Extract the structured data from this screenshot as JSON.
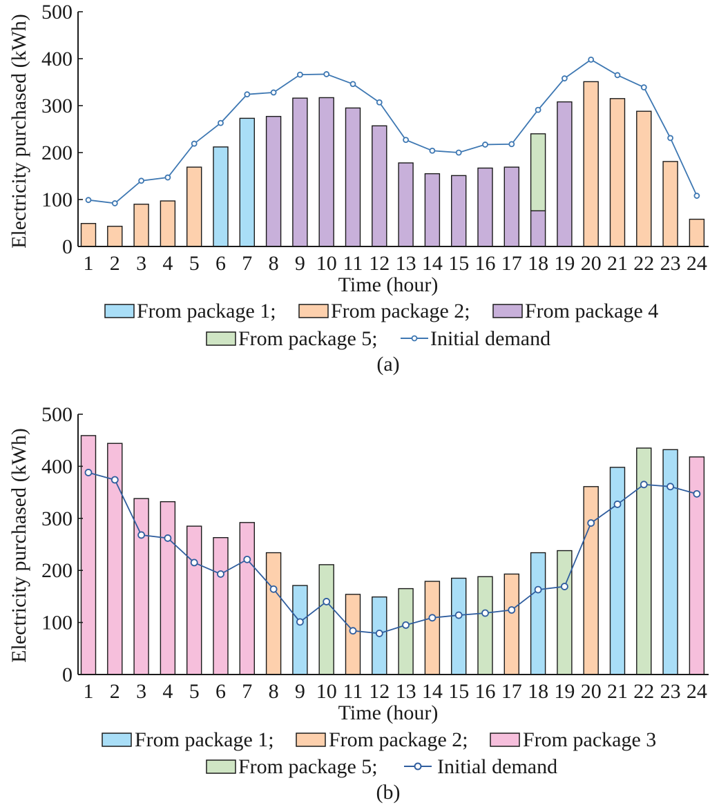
{
  "colors": {
    "package1": "#a9def7",
    "package2": "#fdd0ad",
    "package3": "#f6bfdc",
    "package4": "#c8b0da",
    "package5": "#cfe5c4",
    "line_a": "#3d77b2",
    "line_b": "#2f5d9e",
    "axis": "#1a1a1a"
  },
  "chart_data": [
    {
      "type": "bar",
      "caption": "(a)",
      "xlabel": "Time (hour)",
      "ylabel": "Electricity purchased (kWh)",
      "ylim": [
        0,
        500
      ],
      "yticks": [
        0,
        100,
        200,
        300,
        400,
        500
      ],
      "categories": [
        "1",
        "2",
        "3",
        "4",
        "5",
        "6",
        "7",
        "8",
        "9",
        "10",
        "11",
        "12",
        "13",
        "14",
        "15",
        "16",
        "17",
        "18",
        "19",
        "20",
        "21",
        "22",
        "23",
        "24"
      ],
      "series": [
        {
          "name": "From package 1",
          "color_key": "package1",
          "values": [
            0,
            0,
            0,
            0,
            0,
            212,
            273,
            0,
            0,
            0,
            0,
            0,
            0,
            0,
            0,
            0,
            0,
            0,
            0,
            0,
            0,
            0,
            0,
            0
          ]
        },
        {
          "name": "From package 2",
          "color_key": "package2",
          "values": [
            49,
            43,
            90,
            97,
            169,
            0,
            0,
            0,
            0,
            0,
            0,
            0,
            0,
            0,
            0,
            0,
            0,
            0,
            0,
            351,
            315,
            288,
            181,
            58
          ]
        },
        {
          "name": "From package 4",
          "color_key": "package4",
          "values": [
            0,
            0,
            0,
            0,
            0,
            0,
            0,
            277,
            316,
            317,
            295,
            257,
            178,
            155,
            151,
            167,
            169,
            76,
            308,
            0,
            0,
            0,
            0,
            0
          ]
        },
        {
          "name": "From package 5",
          "color_key": "package5",
          "values": [
            0,
            0,
            0,
            0,
            0,
            0,
            0,
            0,
            0,
            0,
            0,
            0,
            0,
            0,
            0,
            0,
            0,
            164,
            0,
            0,
            0,
            0,
            0,
            0
          ]
        }
      ],
      "line": {
        "name": "Initial demand",
        "color_key": "line_a",
        "values": [
          99,
          92,
          140,
          147,
          219,
          263,
          324,
          328,
          366,
          367,
          346,
          307,
          227,
          204,
          200,
          217,
          218,
          291,
          358,
          398,
          365,
          339,
          231,
          108
        ]
      },
      "legend": {
        "row1": [
          "From package 1;",
          "From package 2;",
          "From package 4"
        ],
        "row2": [
          "From package 5;",
          "Initial demand"
        ]
      }
    },
    {
      "type": "bar",
      "caption": "(b)",
      "xlabel": "Time (hour)",
      "ylabel": "Electricity purchased (kWh)",
      "ylim": [
        0,
        500
      ],
      "yticks": [
        0,
        100,
        200,
        300,
        400,
        500
      ],
      "categories": [
        "1",
        "2",
        "3",
        "4",
        "5",
        "6",
        "7",
        "8",
        "9",
        "10",
        "11",
        "12",
        "13",
        "14",
        "15",
        "16",
        "17",
        "18",
        "19",
        "20",
        "21",
        "22",
        "23",
        "24"
      ],
      "bars": [
        {
          "value": 459,
          "color_key": "package3"
        },
        {
          "value": 444,
          "color_key": "package3"
        },
        {
          "value": 338,
          "color_key": "package3"
        },
        {
          "value": 332,
          "color_key": "package3"
        },
        {
          "value": 285,
          "color_key": "package3"
        },
        {
          "value": 263,
          "color_key": "package3"
        },
        {
          "value": 292,
          "color_key": "package3"
        },
        {
          "value": 234,
          "color_key": "package2"
        },
        {
          "value": 171,
          "color_key": "package1"
        },
        {
          "value": 211,
          "color_key": "package5"
        },
        {
          "value": 154,
          "color_key": "package2"
        },
        {
          "value": 149,
          "color_key": "package1"
        },
        {
          "value": 165,
          "color_key": "package5"
        },
        {
          "value": 179,
          "color_key": "package2"
        },
        {
          "value": 185,
          "color_key": "package1"
        },
        {
          "value": 188,
          "color_key": "package5"
        },
        {
          "value": 193,
          "color_key": "package2"
        },
        {
          "value": 234,
          "color_key": "package1"
        },
        {
          "value": 238,
          "color_key": "package5"
        },
        {
          "value": 361,
          "color_key": "package2"
        },
        {
          "value": 398,
          "color_key": "package1"
        },
        {
          "value": 435,
          "color_key": "package5"
        },
        {
          "value": 432,
          "color_key": "package1"
        },
        {
          "value": 418,
          "color_key": "package3"
        }
      ],
      "line": {
        "name": "Initial demand",
        "color_key": "line_b",
        "values": [
          388,
          374,
          268,
          262,
          215,
          193,
          221,
          164,
          101,
          140,
          84,
          79,
          95,
          109,
          114,
          118,
          124,
          163,
          169,
          291,
          327,
          365,
          361,
          347
        ]
      },
      "legend": {
        "row1": [
          "From package 1;",
          "From package 2;",
          "From package 3"
        ],
        "row2": [
          "From package 5;",
          "Initial demand"
        ]
      }
    }
  ]
}
